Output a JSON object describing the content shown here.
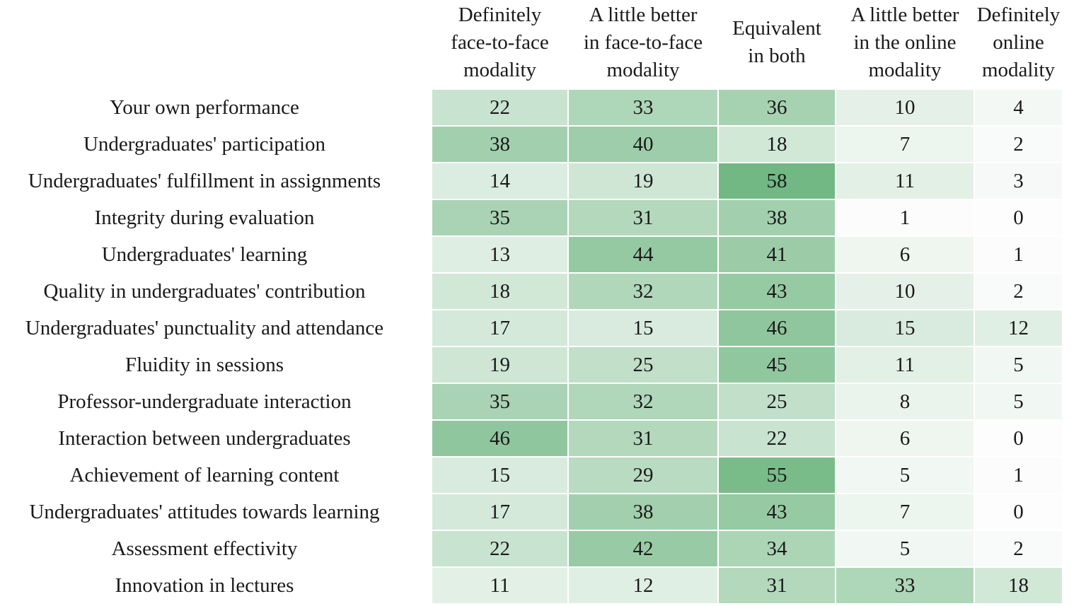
{
  "chart_data": {
    "type": "heatmap",
    "title": "",
    "columns": [
      "Definitely\nface-to-face\nmodality",
      "A little better\nin face-to-face\nmodality",
      "Equivalent\nin both",
      "A little better\nin the online\nmodality",
      "Definitely\nonline\nmodality"
    ],
    "rows": [
      "Your own performance",
      "Undergraduates' participation",
      "Undergraduates' fulfillment in assignments",
      "Integrity during evaluation",
      "Undergraduates' learning",
      "Quality in undergraduates' contribution",
      "Undergraduates' punctuality and attendance",
      "Fluidity in sessions",
      "Professor-undergraduate interaction",
      "Interaction between undergraduates",
      "Achievement of learning content",
      "Undergraduates' attitudes towards learning",
      "Assessment effectivity",
      "Innovation in lectures"
    ],
    "values": [
      [
        22,
        33,
        36,
        10,
        4
      ],
      [
        38,
        40,
        18,
        7,
        2
      ],
      [
        14,
        19,
        58,
        11,
        3
      ],
      [
        35,
        31,
        38,
        1,
        0
      ],
      [
        13,
        44,
        41,
        6,
        1
      ],
      [
        18,
        32,
        43,
        10,
        2
      ],
      [
        17,
        15,
        46,
        15,
        12
      ],
      [
        19,
        25,
        45,
        11,
        5
      ],
      [
        35,
        32,
        25,
        8,
        5
      ],
      [
        46,
        31,
        22,
        6,
        0
      ],
      [
        15,
        29,
        55,
        5,
        1
      ],
      [
        17,
        38,
        43,
        7,
        0
      ],
      [
        22,
        42,
        34,
        5,
        2
      ],
      [
        11,
        12,
        31,
        33,
        18
      ]
    ],
    "color_scale": {
      "low": "#fdfdfd",
      "high": "#72b884",
      "min": 0,
      "max": 58
    }
  }
}
